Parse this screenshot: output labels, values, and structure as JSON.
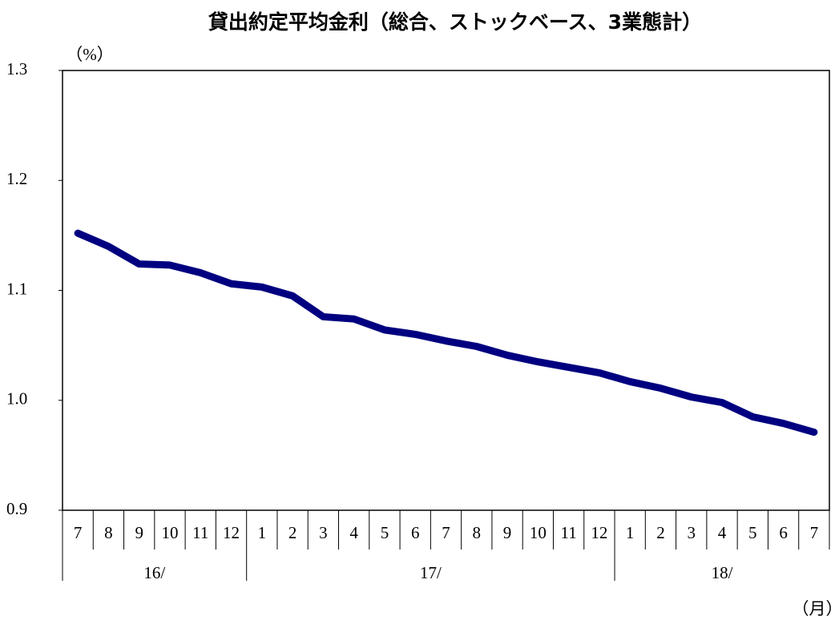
{
  "chart_data": {
    "type": "line",
    "title": "貸出約定平均金利（総合、ストックベース、3業態計）",
    "y_unit": "（%）",
    "x_unit": "（月）",
    "categories": [
      "7",
      "8",
      "9",
      "10",
      "11",
      "12",
      "1",
      "2",
      "3",
      "4",
      "5",
      "6",
      "7",
      "8",
      "9",
      "10",
      "11",
      "12",
      "1",
      "2",
      "3",
      "4",
      "5",
      "6",
      "7"
    ],
    "years": [
      "16/",
      "17/",
      "18/"
    ],
    "series": [
      {
        "name": "貸出約定平均金利",
        "color": "#000080",
        "values": [
          1.152,
          1.14,
          1.124,
          1.123,
          1.116,
          1.106,
          1.103,
          1.095,
          1.076,
          1.074,
          1.064,
          1.06,
          1.054,
          1.049,
          1.041,
          1.035,
          1.03,
          1.025,
          1.017,
          1.011,
          1.003,
          0.998,
          0.985,
          0.979,
          0.971
        ]
      }
    ],
    "ylim": [
      0.9,
      1.3
    ],
    "yticks": [
      0.9,
      {
        "value": 1,
        "label": "1.0"
      },
      1.1,
      1.2,
      1.3
    ],
    "grid": false
  }
}
